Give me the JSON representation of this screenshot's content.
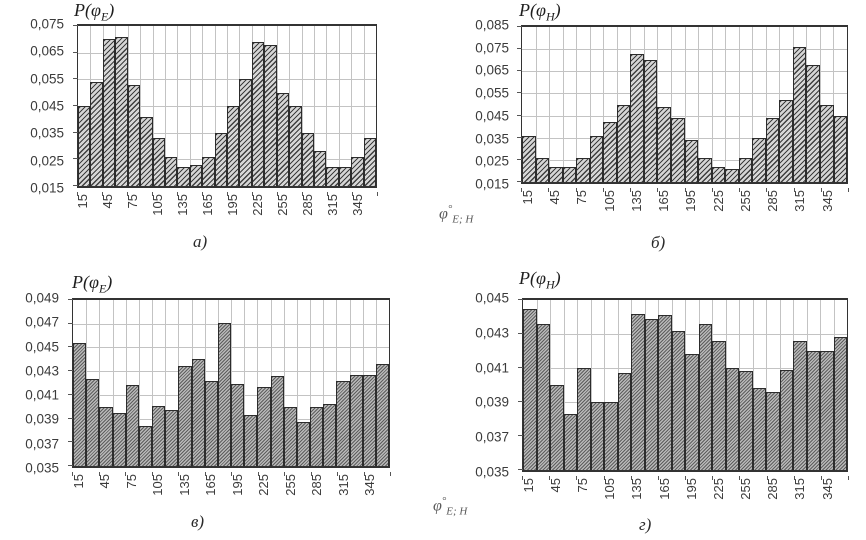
{
  "colors": {
    "background": "#ffffff",
    "bar_fill_top": "#d6d6d6",
    "bar_fill_bottom": "#b9b9b9",
    "bar_hatch": "#3e3e3e",
    "bar_border": "#2c2c2c",
    "grid": "#c3c3c3",
    "axis": "#333333",
    "tick_label": "#3b3b3b"
  },
  "phi_axis_label": {
    "base": "φ",
    "sup": "°",
    "sub": "E; H"
  },
  "chart_data": [
    {
      "id": "a",
      "type": "bar",
      "title": {
        "prefix": "P(φ",
        "sub": "E",
        "suffix": ")"
      },
      "caption": "а)",
      "ylim": [
        0.015,
        0.075
      ],
      "ystep": 0.01,
      "ytick_labels": [
        "0,075",
        "0,065",
        "0,055",
        "0,045",
        "0,035",
        "0,025",
        "0,015"
      ],
      "x": [
        15,
        30,
        45,
        60,
        75,
        90,
        105,
        120,
        135,
        150,
        165,
        180,
        195,
        210,
        225,
        240,
        255,
        270,
        285,
        300,
        315,
        330,
        345,
        360
      ],
      "xtick_labels": [
        "15",
        "45",
        "75",
        "105",
        "135",
        "165",
        "195",
        "225",
        "255",
        "285",
        "315",
        "345"
      ],
      "values": [
        0.045,
        0.054,
        0.07,
        0.071,
        0.053,
        0.041,
        0.033,
        0.026,
        0.022,
        0.023,
        0.026,
        0.035,
        0.045,
        0.055,
        0.069,
        0.068,
        0.05,
        0.045,
        0.035,
        0.028,
        0.022,
        0.022,
        0.026,
        0.033
      ],
      "grid": true,
      "legend": "none",
      "hatch": "coarse",
      "show_phi_label": false
    },
    {
      "id": "b",
      "type": "bar",
      "title": {
        "prefix": "P(φ",
        "sub": "H",
        "suffix": ")"
      },
      "caption": "б)",
      "ylim": [
        0.015,
        0.085
      ],
      "ystep": 0.01,
      "ytick_labels": [
        "0,085",
        "0,075",
        "0,065",
        "0,055",
        "0,045",
        "0,035",
        "0,025",
        "0,015"
      ],
      "x": [
        15,
        30,
        45,
        60,
        75,
        90,
        105,
        120,
        135,
        150,
        165,
        180,
        195,
        210,
        225,
        240,
        255,
        270,
        285,
        300,
        315,
        330,
        345,
        360
      ],
      "xtick_labels": [
        "15",
        "45",
        "75",
        "105",
        "135",
        "165",
        "195",
        "225",
        "255",
        "285",
        "315",
        "345"
      ],
      "values": [
        0.036,
        0.026,
        0.022,
        0.022,
        0.026,
        0.036,
        0.042,
        0.05,
        0.073,
        0.07,
        0.049,
        0.044,
        0.034,
        0.026,
        0.022,
        0.021,
        0.026,
        0.035,
        0.044,
        0.052,
        0.076,
        0.068,
        0.05,
        0.045
      ],
      "grid": true,
      "legend": "none",
      "hatch": "coarse",
      "show_phi_label": true
    },
    {
      "id": "v",
      "type": "bar",
      "title": {
        "prefix": "P(φ",
        "sub": "E",
        "suffix": ")"
      },
      "caption": "в)",
      "ylim": [
        0.035,
        0.049
      ],
      "ystep": 0.002,
      "ytick_labels": [
        "0,049",
        "0,047",
        "0,045",
        "0,043",
        "0,041",
        "0,039",
        "0,037",
        "0,035"
      ],
      "x": [
        15,
        30,
        45,
        60,
        75,
        90,
        105,
        120,
        135,
        150,
        165,
        180,
        195,
        210,
        225,
        240,
        255,
        270,
        285,
        300,
        315,
        330,
        345,
        360
      ],
      "xtick_labels": [
        "15",
        "45",
        "75",
        "105",
        "135",
        "165",
        "195",
        "225",
        "255",
        "285",
        "315",
        "345"
      ],
      "values": [
        0.0454,
        0.0423,
        0.04,
        0.0395,
        0.0418,
        0.0384,
        0.0401,
        0.0397,
        0.0434,
        0.044,
        0.0422,
        0.0471,
        0.0419,
        0.0393,
        0.0417,
        0.0426,
        0.04,
        0.0387,
        0.04,
        0.0402,
        0.0422,
        0.0427,
        0.0427,
        0.0436
      ],
      "grid": true,
      "legend": "none",
      "hatch": "fine",
      "show_phi_label": false
    },
    {
      "id": "g",
      "type": "bar",
      "title": {
        "prefix": "P(φ",
        "sub": "H",
        "suffix": ")"
      },
      "caption": "г)",
      "ylim": [
        0.035,
        0.045
      ],
      "ystep": 0.002,
      "ytick_labels": [
        "0,045",
        "0,043",
        "0,041",
        "0,039",
        "0,037",
        "0,035"
      ],
      "x": [
        15,
        30,
        45,
        60,
        75,
        90,
        105,
        120,
        135,
        150,
        165,
        180,
        195,
        210,
        225,
        240,
        255,
        270,
        285,
        300,
        315,
        330,
        345,
        360
      ],
      "xtick_labels": [
        "15",
        "45",
        "75",
        "105",
        "135",
        "165",
        "195",
        "225",
        "255",
        "285",
        "315",
        "345"
      ],
      "values": [
        0.0445,
        0.0436,
        0.04,
        0.0383,
        0.041,
        0.039,
        0.039,
        0.0407,
        0.0442,
        0.0439,
        0.0441,
        0.0432,
        0.0418,
        0.0436,
        0.0426,
        0.041,
        0.0408,
        0.0398,
        0.0396,
        0.0409,
        0.0426,
        0.042,
        0.042,
        0.0428
      ],
      "grid": true,
      "legend": "none",
      "hatch": "fine",
      "show_phi_label": true
    }
  ]
}
